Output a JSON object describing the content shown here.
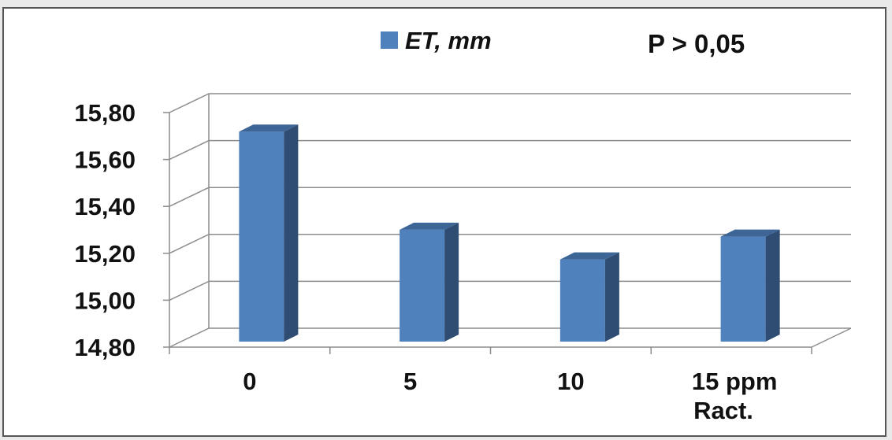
{
  "chart_data": {
    "type": "bar",
    "style": "3d-column",
    "categories": [
      "0",
      "5",
      "10",
      "15 ppm"
    ],
    "xlabel": "Ract.",
    "ylabel": "",
    "series": [
      {
        "name": "ET, mm",
        "values": [
          15.72,
          15.29,
          15.16,
          15.26
        ],
        "color": "#4f81bd"
      }
    ],
    "ylim": [
      14.8,
      15.8
    ],
    "yticks": [
      "14,80",
      "15,00",
      "15,20",
      "15,40",
      "15,60",
      "15,80"
    ],
    "yticks_values": [
      14.8,
      15.0,
      15.2,
      15.4,
      15.6,
      15.8
    ],
    "annotation": "P > 0,05",
    "grid": true,
    "legend_position": "top"
  }
}
